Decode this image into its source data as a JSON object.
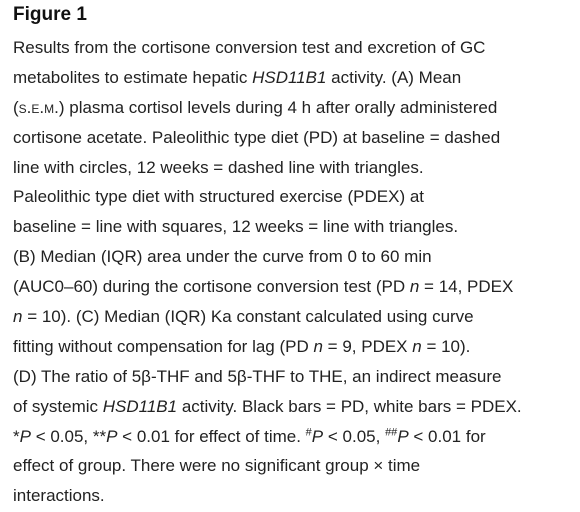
{
  "title": "Figure 1",
  "caption": {
    "lines": [
      [
        "Results from the cortisone conversion test and excretion of GC"
      ],
      [
        "metabolites to estimate hepatic ",
        {
          "i": "HSD11B1"
        },
        " activity. (A) Mean"
      ],
      [
        "(",
        {
          "sc": "s.e.m."
        },
        ") plasma cortisol levels during 4 h after orally administered"
      ],
      [
        "cortisone acetate. Paleolithic type diet (PD) at baseline = dashed"
      ],
      [
        "line with circles, 12 weeks = dashed line with triangles."
      ],
      [
        "Paleolithic type diet with structured exercise (PDEX) at"
      ],
      [
        "baseline = line with squares, 12 weeks = line with triangles."
      ],
      [
        "(B) Median (IQR) area under the curve from 0 to 60 min"
      ],
      [
        "(AUC0–60) during the cortisone conversion test (PD ",
        {
          "i": "n"
        },
        " = 14, PDEX"
      ],
      [
        {
          "i": "n"
        },
        " = 10). (C) Median (IQR) Ka constant calculated using curve"
      ],
      [
        "fitting without compensation for lag (PD ",
        {
          "i": "n"
        },
        " = 9, PDEX ",
        {
          "i": "n"
        },
        " = 10)."
      ],
      [
        "(D) The ratio of 5β-THF and 5β-THF to THE, an indirect measure"
      ],
      [
        "of systemic ",
        {
          "i": "HSD11B1"
        },
        " activity. Black bars = PD, white bars = PDEX."
      ],
      [
        "*",
        {
          "i": "P"
        },
        " < 0.05, **",
        {
          "i": "P"
        },
        " < 0.01 for effect of time. ",
        {
          "sup": "#"
        },
        {
          "i": "P"
        },
        " < 0.05, ",
        {
          "sup": "##"
        },
        {
          "i": "P"
        },
        " < 0.01 for"
      ],
      [
        "effect of group. There were no significant group × time"
      ],
      [
        "interactions."
      ]
    ]
  }
}
